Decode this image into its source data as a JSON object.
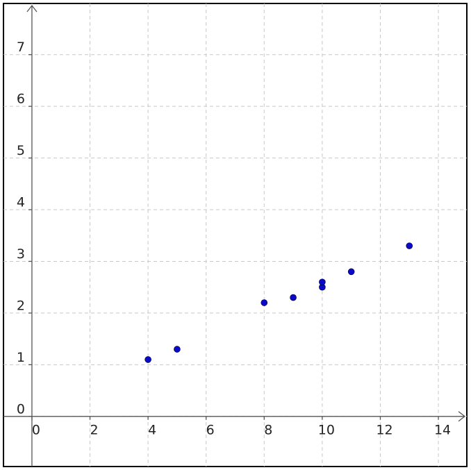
{
  "chart_data": {
    "type": "scatter",
    "x": [
      4,
      5,
      8,
      9,
      10,
      10,
      11,
      13
    ],
    "values": [
      1.1,
      1.3,
      2.2,
      2.3,
      2.5,
      2.6,
      2.8,
      3.3
    ],
    "color": "#0a0ac8",
    "xlim": [
      -0.98,
      14.98
    ],
    "ylim": [
      -0.97,
      7.99
    ],
    "xticks": [
      0,
      2,
      4,
      6,
      8,
      10,
      12,
      14
    ],
    "yticks": [
      0,
      1,
      2,
      3,
      4,
      5,
      6,
      7
    ],
    "grid": true
  }
}
